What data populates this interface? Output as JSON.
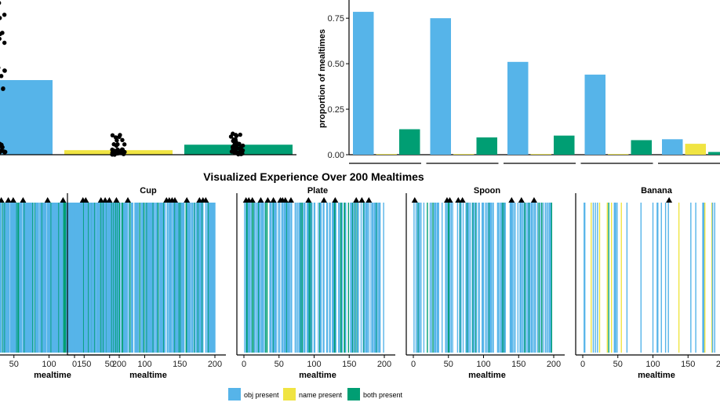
{
  "colors": {
    "obj": "#56B4E9",
    "name": "#F0E442",
    "both": "#009E73",
    "marker": "#000000"
  },
  "chart_data": [
    {
      "type": "bar",
      "id": "left-top-jitter",
      "title": "",
      "xlabel": "",
      "ylabel": "",
      "categories": [
        "obj present",
        "name present",
        "both present"
      ],
      "values": [
        0.41,
        0.025,
        0.055
      ],
      "ylim": [
        0,
        0.85
      ],
      "points_per_group": 40
    },
    {
      "type": "bar",
      "id": "right-top-proportions",
      "title": "",
      "xlabel": "",
      "ylabel": "proportion of mealtimes",
      "ylim": [
        0,
        0.85
      ],
      "yticks": [
        "0.00",
        "0.25",
        "0.50",
        "0.75"
      ],
      "ytick_values": [
        0,
        0.25,
        0.5,
        0.75
      ],
      "groups": [
        {
          "values": {
            "obj": 0.785,
            "name": 0.0,
            "both": 0.14
          }
        },
        {
          "values": {
            "obj": 0.75,
            "name": 0.0,
            "both": 0.095
          }
        },
        {
          "values": {
            "obj": 0.51,
            "name": 0.0,
            "both": 0.105
          }
        },
        {
          "values": {
            "obj": 0.44,
            "name": 0.0,
            "both": 0.08
          }
        },
        {
          "values": {
            "obj": 0.085,
            "name": 0.06,
            "both": 0.015
          }
        }
      ]
    },
    {
      "type": "heatmap",
      "id": "experience-timelines",
      "title": "Visualized Experience Over 200 Mealtimes",
      "xlabel": "mealtime",
      "xlim": [
        0,
        200
      ],
      "xticks": [
        "0",
        "50",
        "100",
        "150",
        "200"
      ],
      "xtick_values": [
        0,
        50,
        100,
        150,
        200
      ],
      "panels": [
        {
          "name": "",
          "obj": 0.79,
          "both": 0.14,
          "name_p": 0.0,
          "markers": [
            4,
            32,
            42,
            49,
            63,
            98,
            120,
            174,
            180,
            186,
            196
          ],
          "seed": 11
        },
        {
          "name": "Cup",
          "obj": 0.75,
          "both": 0.095,
          "name_p": 0.0,
          "markers": [
            12,
            16,
            76,
            131,
            135,
            139,
            143,
            160,
            178,
            183,
            187
          ],
          "seed": 23
        },
        {
          "name": "Plate",
          "obj": 0.51,
          "both": 0.105,
          "name_p": 0.0,
          "markers": [
            3,
            7,
            12,
            24,
            34,
            42,
            52,
            55,
            59,
            67,
            92,
            114,
            130,
            160,
            168,
            178
          ],
          "seed": 37
        },
        {
          "name": "Spoon",
          "obj": 0.44,
          "both": 0.08,
          "name_p": 0.0,
          "markers": [
            2,
            48,
            52,
            64,
            70,
            140,
            154,
            172
          ],
          "seed": 41
        },
        {
          "name": "Banana",
          "obj": 0.085,
          "both": 0.015,
          "name_p": 0.06,
          "markers": [
            123
          ],
          "seed": 53
        }
      ]
    }
  ],
  "legend": {
    "items": [
      {
        "key": "obj",
        "label": "obj present"
      },
      {
        "key": "name",
        "label": "name present"
      },
      {
        "key": "both",
        "label": "both present"
      }
    ]
  }
}
